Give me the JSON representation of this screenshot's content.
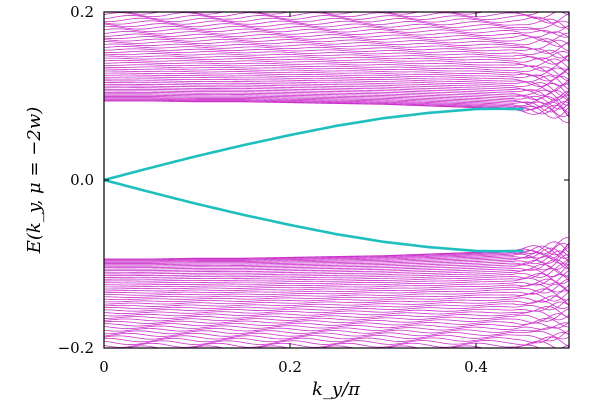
{
  "chart_data": {
    "type": "line",
    "title": "",
    "xlabel": "k_y/π",
    "ylabel": "E(k_y, μ = −2w)",
    "xlim": [
      0,
      0.5
    ],
    "ylim": [
      -0.2,
      0.2
    ],
    "x_ticks": [
      0,
      0.2,
      0.4
    ],
    "x_tick_labels": [
      "0",
      "0.2",
      "0.4"
    ],
    "y_ticks": [
      -0.2,
      0.0,
      0.2
    ],
    "y_tick_labels": [
      "−0.2",
      "0.0",
      "0.2"
    ],
    "grid": false,
    "colors": {
      "bulk": "#cc33cc",
      "edge": "#1fbfbf"
    },
    "series": [
      {
        "role": "edge-state-upper",
        "color": "#1fbfbf",
        "x": [
          0,
          0.05,
          0.1,
          0.15,
          0.2,
          0.25,
          0.3,
          0.35,
          0.4,
          0.42,
          0.45
        ],
        "y": [
          0,
          0.0145,
          0.0285,
          0.0415,
          0.0535,
          0.0645,
          0.0735,
          0.08,
          0.0845,
          0.0848,
          0.0845
        ]
      },
      {
        "role": "edge-state-lower",
        "color": "#1fbfbf",
        "x": [
          0,
          0.05,
          0.1,
          0.15,
          0.2,
          0.25,
          0.3,
          0.35,
          0.4,
          0.42,
          0.45
        ],
        "y": [
          0,
          -0.0145,
          -0.0285,
          -0.0415,
          -0.0535,
          -0.0645,
          -0.0735,
          -0.08,
          -0.0845,
          -0.0848,
          -0.0845
        ]
      },
      {
        "role": "bulk-bands-upper",
        "color": "#cc33cc",
        "x": [
          0,
          0.05,
          0.1,
          0.15,
          0.2,
          0.25,
          0.3,
          0.35,
          0.4,
          0.45,
          0.5
        ],
        "y_min": [
          0.094,
          0.094,
          0.093,
          0.093,
          0.092,
          0.091,
          0.09,
          0.088,
          0.086,
          0.083,
          0.079
        ],
        "y_max": [
          0.2,
          0.2,
          0.2,
          0.2,
          0.2,
          0.2,
          0.2,
          0.2,
          0.2,
          0.2,
          0.2
        ]
      },
      {
        "role": "bulk-bands-lower",
        "color": "#cc33cc",
        "x": [
          0,
          0.05,
          0.1,
          0.15,
          0.2,
          0.25,
          0.3,
          0.35,
          0.4,
          0.45,
          0.5
        ],
        "y_min": [
          -0.2,
          -0.2,
          -0.2,
          -0.2,
          -0.2,
          -0.2,
          -0.2,
          -0.2,
          -0.2,
          -0.2,
          -0.2
        ],
        "y_max": [
          -0.094,
          -0.094,
          -0.093,
          -0.093,
          -0.092,
          -0.091,
          -0.09,
          -0.088,
          -0.086,
          -0.083,
          -0.079
        ]
      }
    ]
  }
}
